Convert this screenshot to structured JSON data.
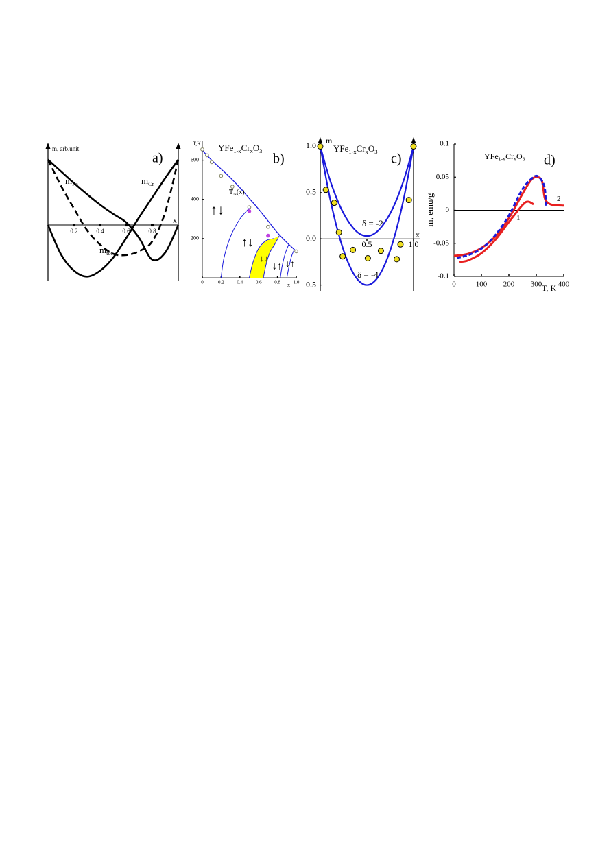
{
  "chart_data": [
    {
      "type": "line",
      "panel_label": "a)",
      "ylabel": "m, arb.unit",
      "xlabel": "x",
      "xlim": [
        0,
        1
      ],
      "ylim": [
        -0.86,
        1.26
      ],
      "xticks": [
        0.2,
        0.4,
        0.6,
        0.8
      ],
      "series": [
        {
          "name": [
            "m",
            "Fe"
          ],
          "color": "#000000",
          "x": [
            0,
            0.1,
            0.2,
            0.3,
            0.4,
            0.5,
            0.6,
            0.7,
            0.8,
            0.9,
            1
          ],
          "values": [
            1,
            0.82,
            0.64,
            0.47,
            0.31,
            0.17,
            0.04,
            -0.2,
            -0.53,
            -0.42,
            0
          ]
        },
        {
          "name": [
            "m",
            "Cr"
          ],
          "color": "#000000",
          "x": [
            0,
            0.1,
            0.2,
            0.3,
            0.4,
            0.5,
            0.6,
            0.7,
            0.8,
            0.9,
            1
          ],
          "values": [
            0,
            -0.45,
            -0.7,
            -0.79,
            -0.7,
            -0.5,
            -0.2,
            0.12,
            0.42,
            0.72,
            1
          ]
        },
        {
          "name": [
            "m",
            "tot"
          ],
          "color": "#000000",
          "dashed": true,
          "x": [
            0,
            0.1,
            0.2,
            0.3,
            0.4,
            0.5,
            0.6,
            0.7,
            0.8,
            0.9,
            1
          ],
          "values": [
            1,
            0.6,
            0.25,
            -0.08,
            -0.3,
            -0.44,
            -0.46,
            -0.4,
            -0.25,
            0.2,
            1
          ]
        }
      ]
    },
    {
      "type": "line",
      "panel_label": "b)",
      "ylabel": "T,K",
      "xlabel": "x",
      "title": [
        "YFe",
        "1-x",
        "Cr",
        "x",
        "O",
        "3"
      ],
      "xlim": [
        0,
        1
      ],
      "ylim": [
        0,
        700
      ],
      "xticks": [
        0,
        0.2,
        0.4,
        0.6,
        0.8,
        {
          "value": 1,
          "label": "1.0"
        }
      ],
      "yticks": [
        200,
        400,
        600
      ],
      "series": [
        {
          "name": [
            "T",
            "N",
            "(x)"
          ],
          "color": "#1a1adc",
          "x": [
            0,
            0.1,
            0.2,
            0.3,
            0.4,
            0.5,
            0.6,
            0.7,
            0.8,
            0.9,
            1
          ],
          "values": [
            650,
            600,
            555,
            510,
            460,
            405,
            350,
            290,
            230,
            180,
            135
          ]
        },
        {
          "mark": "points",
          "color": "#ffffff",
          "stroke": "#808060",
          "x": [
            0,
            0.05,
            0.1,
            0.2,
            0.32,
            0.5,
            0.7,
            1
          ],
          "values": [
            655,
            625,
            590,
            520,
            465,
            360,
            260,
            135
          ]
        },
        {
          "mark": "points",
          "color": "#c040e0",
          "stroke": "#c040e0",
          "x": [
            0.5,
            0.7
          ],
          "values": [
            340,
            215
          ]
        },
        {
          "color": "#1a1adc",
          "x": [
            0.2,
            0.23,
            0.3,
            0.4,
            0.5
          ],
          "values": [
            0,
            100,
            210,
            300,
            355
          ]
        },
        {
          "color": "#1a1adc",
          "x": [
            0.5,
            0.54,
            0.6,
            0.68,
            0.76
          ],
          "values": [
            0,
            80,
            150,
            190,
            200
          ]
        },
        {
          "color": "#1a1adc",
          "x": [
            0.65,
            0.68,
            0.72,
            0.77,
            0.82
          ],
          "values": [
            0,
            70,
            130,
            170,
            215
          ]
        },
        {
          "color": "#1a1adc",
          "x": [
            0.83,
            0.85,
            0.88,
            0.92
          ],
          "values": [
            0,
            60,
            120,
            170
          ]
        },
        {
          "color": "#1a1adc",
          "x": [
            0.9,
            0.92,
            0.95,
            0.98
          ],
          "values": [
            0,
            50,
            110,
            145
          ]
        }
      ],
      "fill_between": [
        4,
        5
      ],
      "fill_color": "#ffff00",
      "annotations": [
        "↑↓",
        "↑↓",
        "↓↓",
        "↓↑",
        "↓↑"
      ]
    },
    {
      "type": "line",
      "panel_label": "c)",
      "ylabel": "m",
      "xlabel": "x",
      "title": [
        "YFe",
        "1-x",
        "Cr",
        "x",
        "O",
        "3"
      ],
      "xlim": [
        0,
        1
      ],
      "ylim": [
        -0.57,
        1.1
      ],
      "xticks": [
        0.5,
        {
          "value": 1,
          "label": "1.0"
        }
      ],
      "yticks": [
        {
          "value": 1,
          "label": "1.0"
        },
        0.5,
        {
          "value": 0,
          "label": "0.0"
        },
        -0.5
      ],
      "series": [
        {
          "name": [
            "δ = -2"
          ],
          "color": "#1a1adc",
          "x": [
            0,
            0.1,
            0.2,
            0.3,
            0.4,
            0.5,
            0.6,
            0.7,
            0.8,
            0.9,
            1
          ],
          "values": [
            1,
            0.65,
            0.38,
            0.19,
            0.07,
            0.03,
            0.07,
            0.19,
            0.38,
            0.65,
            1
          ]
        },
        {
          "name": [
            "δ = -4"
          ],
          "color": "#1a1adc",
          "x": [
            0,
            0.1,
            0.2,
            0.3,
            0.4,
            0.5,
            0.6,
            0.7,
            0.8,
            0.9,
            1
          ],
          "values": [
            1,
            0.46,
            0.04,
            -0.26,
            -0.44,
            -0.5,
            -0.44,
            -0.26,
            0.04,
            0.46,
            1
          ]
        },
        {
          "mark": "points",
          "color": "#f0e020",
          "stroke": "#000000",
          "x": [
            0,
            0.06,
            0.15,
            0.2,
            0.24,
            0.35,
            0.51,
            0.65,
            0.82,
            0.86,
            0.95,
            1
          ],
          "values": [
            1,
            0.53,
            0.39,
            0.07,
            -0.19,
            -0.12,
            -0.21,
            -0.13,
            -0.22,
            -0.06,
            0.42,
            1
          ]
        }
      ]
    },
    {
      "type": "line",
      "panel_label": "d)",
      "ylabel": "m, emu/g",
      "xlabel": "T, K",
      "title": [
        "YFe",
        "1-x",
        "Cr",
        "x",
        "O",
        "3"
      ],
      "xlim": [
        0,
        400
      ],
      "ylim": [
        -0.1,
        0.1
      ],
      "xticks": [
        0,
        100,
        200,
        300,
        400
      ],
      "yticks": [
        0.1,
        0.05,
        0,
        -0.05,
        -0.1
      ],
      "series": [
        {
          "name": [
            "2"
          ],
          "color": "#e82020",
          "x": [
            0,
            50,
            100,
            150,
            200,
            250,
            280,
            300,
            320,
            330,
            340,
            360,
            400
          ],
          "values": [
            -0.069,
            -0.066,
            -0.057,
            -0.04,
            -0.012,
            0.025,
            0.045,
            0.05,
            0.045,
            0.02,
            0.012,
            0.008,
            0.007
          ]
        },
        {
          "color": "#1a1adc",
          "dashed": true,
          "x": [
            10,
            50,
            100,
            150,
            200,
            250,
            290,
            310,
            330,
            335
          ],
          "values": [
            -0.072,
            -0.068,
            -0.058,
            -0.038,
            -0.008,
            0.032,
            0.05,
            0.05,
            0.035,
            0.005
          ]
        },
        {
          "name": [
            "1"
          ],
          "color": "#e82020",
          "x": [
            20,
            50,
            100,
            150,
            200,
            250,
            270,
            290
          ],
          "values": [
            -0.078,
            -0.076,
            -0.065,
            -0.045,
            -0.018,
            0.008,
            0.013,
            0.009
          ]
        }
      ]
    }
  ]
}
